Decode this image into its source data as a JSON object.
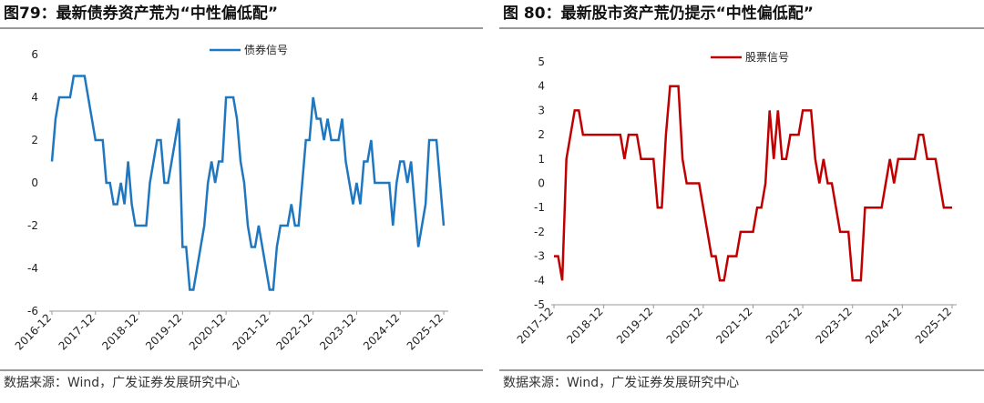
{
  "chart_data": [
    {
      "type": "line",
      "title": "图79：最新债券资产荒为“中性偏低配”",
      "source": "数据来源：Wind，广发证券发展研究中心",
      "categories": [
        "2016-12",
        null,
        null,
        null,
        null,
        null,
        null,
        null,
        null,
        null,
        null,
        null,
        "2017-12",
        null,
        null,
        null,
        null,
        null,
        null,
        null,
        null,
        null,
        null,
        null,
        "2018-12",
        null,
        null,
        null,
        null,
        null,
        null,
        null,
        null,
        null,
        null,
        null,
        "2019-12",
        null,
        null,
        null,
        null,
        null,
        null,
        null,
        null,
        null,
        null,
        null,
        "2020-12",
        null,
        null,
        null,
        null,
        null,
        null,
        null,
        null,
        null,
        null,
        null,
        "2021-12",
        null,
        null,
        null,
        null,
        null,
        null,
        null,
        null,
        null,
        null,
        null,
        "2022-12",
        null,
        null,
        null,
        null,
        null,
        null,
        null,
        null,
        null,
        null,
        null,
        "2023-12",
        null,
        null,
        null,
        null,
        null,
        null,
        null,
        null,
        null,
        null,
        null,
        "2024-12",
        null,
        null,
        null,
        null,
        null,
        null,
        null,
        null,
        null,
        null,
        null,
        "2025-12"
      ],
      "series": [
        {
          "name": "债券信号",
          "color": "#1f77c0",
          "values": [
            1,
            3,
            4,
            4,
            4,
            4,
            5,
            5,
            5,
            5,
            4,
            3,
            2,
            2,
            2,
            0,
            0,
            -1,
            -1,
            0,
            -1,
            1,
            -1,
            -2,
            -2,
            -2,
            -2,
            0,
            1,
            2,
            2,
            0,
            0,
            1,
            2,
            3,
            -3,
            -3,
            -5,
            -5,
            -4,
            -3,
            -2,
            0,
            1,
            0,
            1,
            1,
            4,
            4,
            4,
            3,
            1,
            0,
            -2,
            -3,
            -3,
            -2,
            -3,
            -4,
            -5,
            -5,
            -3,
            -2,
            -2,
            -2,
            -1,
            -2,
            -2,
            0,
            2,
            2,
            4,
            3,
            3,
            2,
            3,
            2,
            2,
            2,
            3,
            1,
            0,
            -1,
            0,
            -1,
            1,
            1,
            2,
            0,
            0,
            0,
            0,
            0,
            -2,
            0,
            1,
            1,
            0,
            1,
            -1,
            -3,
            -2,
            -1,
            2,
            2,
            2,
            0,
            -2
          ]
        }
      ],
      "ylim": [
        -6,
        6
      ],
      "yticks": [
        -6,
        -4,
        -2,
        0,
        2,
        4,
        6
      ]
    },
    {
      "type": "line",
      "title": "图 80：最新股市资产荒仍提示“中性偏低配”",
      "source": "数据来源：Wind，广发证券发展研究中心",
      "categories": [
        "2017-12",
        null,
        null,
        null,
        null,
        null,
        null,
        null,
        null,
        null,
        null,
        null,
        "2018-12",
        null,
        null,
        null,
        null,
        null,
        null,
        null,
        null,
        null,
        null,
        null,
        "2019-12",
        null,
        null,
        null,
        null,
        null,
        null,
        null,
        null,
        null,
        null,
        null,
        "2020-12",
        null,
        null,
        null,
        null,
        null,
        null,
        null,
        null,
        null,
        null,
        null,
        "2021-12",
        null,
        null,
        null,
        null,
        null,
        null,
        null,
        null,
        null,
        null,
        null,
        "2022-12",
        null,
        null,
        null,
        null,
        null,
        null,
        null,
        null,
        null,
        null,
        null,
        "2023-12",
        null,
        null,
        null,
        null,
        null,
        null,
        null,
        null,
        null,
        null,
        null,
        "2024-12",
        null,
        null,
        null,
        null,
        null,
        null,
        null,
        null,
        null,
        null,
        null,
        "2025-12"
      ],
      "series": [
        {
          "name": "股票信号",
          "color": "#c00000",
          "values": [
            -3,
            -3,
            -4,
            1,
            2,
            3,
            3,
            2,
            2,
            2,
            2,
            2,
            2,
            2,
            2,
            2,
            2,
            1,
            2,
            2,
            2,
            1,
            1,
            1,
            1,
            -1,
            -1,
            2,
            4,
            4,
            4,
            1,
            0,
            0,
            0,
            0,
            -1,
            -2,
            -3,
            -3,
            -4,
            -4,
            -3,
            -3,
            -3,
            -2,
            -2,
            -2,
            -2,
            -1,
            -1,
            0,
            3,
            1,
            3,
            1,
            1,
            2,
            2,
            2,
            3,
            3,
            3,
            1,
            0,
            1,
            0,
            0,
            -1,
            -2,
            -2,
            -2,
            -4,
            -4,
            -4,
            -1,
            -1,
            -1,
            -1,
            -1,
            0,
            1,
            0,
            1,
            1,
            1,
            1,
            1,
            2,
            2,
            1,
            1,
            1,
            0,
            -1,
            -1,
            -1
          ]
        }
      ],
      "ylim": [
        -5,
        5
      ],
      "yticks": [
        -5,
        -4,
        -3,
        -2,
        -1,
        0,
        1,
        2,
        3,
        4,
        5
      ]
    }
  ]
}
